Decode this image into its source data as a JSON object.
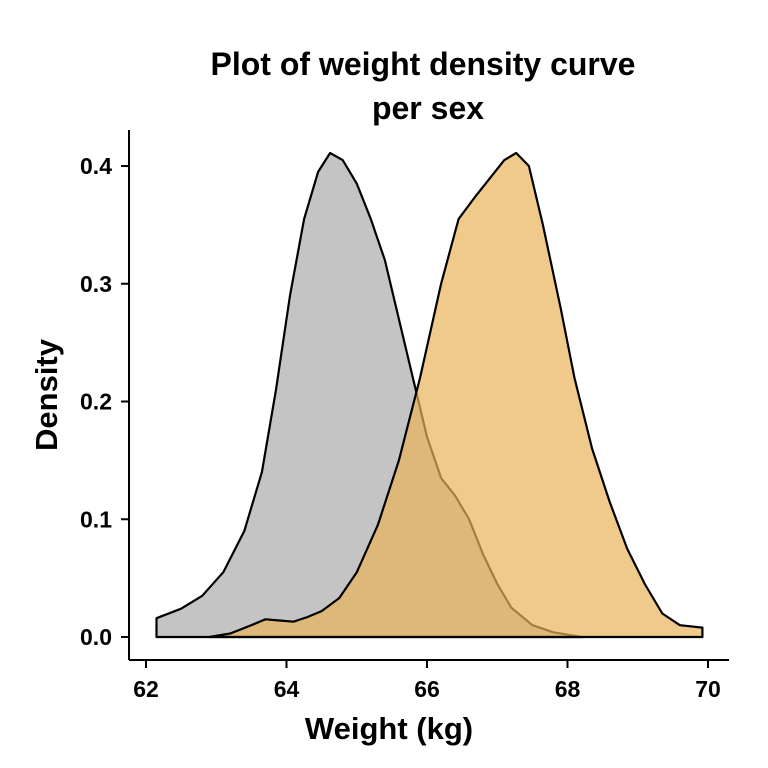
{
  "chart_data": {
    "type": "area",
    "title": [
      "Plot of weight density curve",
      "per sex"
    ],
    "xlabel": "Weight (kg)",
    "ylabel": "Density",
    "xlim": [
      62,
      70
    ],
    "ylim": [
      0,
      0.4
    ],
    "x_ticks": [
      "62",
      "64",
      "66",
      "68",
      "70"
    ],
    "y_ticks": [
      "0.0",
      "0.1",
      "0.2",
      "0.3",
      "0.4"
    ],
    "legend": "none",
    "grid": false,
    "series": [
      {
        "color": "#bebebe",
        "opacity": 0.9,
        "points": [
          [
            62.15,
            0.016
          ],
          [
            62.5,
            0.024
          ],
          [
            62.8,
            0.035
          ],
          [
            63.1,
            0.055
          ],
          [
            63.4,
            0.09
          ],
          [
            63.65,
            0.14
          ],
          [
            63.85,
            0.21
          ],
          [
            64.05,
            0.29
          ],
          [
            64.25,
            0.355
          ],
          [
            64.45,
            0.395
          ],
          [
            64.62,
            0.411
          ],
          [
            64.8,
            0.405
          ],
          [
            65.0,
            0.385
          ],
          [
            65.2,
            0.355
          ],
          [
            65.4,
            0.32
          ],
          [
            65.6,
            0.27
          ],
          [
            65.8,
            0.22
          ],
          [
            66.0,
            0.17
          ],
          [
            66.2,
            0.135
          ],
          [
            66.4,
            0.12
          ],
          [
            66.6,
            0.1
          ],
          [
            66.8,
            0.07
          ],
          [
            67.0,
            0.045
          ],
          [
            67.2,
            0.025
          ],
          [
            67.5,
            0.01
          ],
          [
            67.8,
            0.004
          ],
          [
            68.2,
            0.0
          ]
        ]
      },
      {
        "color": "#e9b45a",
        "opacity": 0.7,
        "points": [
          [
            62.9,
            0.0
          ],
          [
            63.2,
            0.003
          ],
          [
            63.5,
            0.01
          ],
          [
            63.7,
            0.015
          ],
          [
            63.9,
            0.014
          ],
          [
            64.1,
            0.013
          ],
          [
            64.3,
            0.017
          ],
          [
            64.5,
            0.022
          ],
          [
            64.75,
            0.033
          ],
          [
            65.0,
            0.055
          ],
          [
            65.3,
            0.095
          ],
          [
            65.6,
            0.15
          ],
          [
            65.9,
            0.22
          ],
          [
            66.2,
            0.3
          ],
          [
            66.45,
            0.355
          ],
          [
            66.7,
            0.375
          ],
          [
            66.9,
            0.39
          ],
          [
            67.1,
            0.405
          ],
          [
            67.27,
            0.411
          ],
          [
            67.45,
            0.4
          ],
          [
            67.65,
            0.35
          ],
          [
            67.9,
            0.28
          ],
          [
            68.1,
            0.22
          ],
          [
            68.35,
            0.16
          ],
          [
            68.6,
            0.115
          ],
          [
            68.85,
            0.075
          ],
          [
            69.1,
            0.045
          ],
          [
            69.35,
            0.02
          ],
          [
            69.6,
            0.01
          ],
          [
            69.92,
            0.008
          ]
        ]
      }
    ]
  }
}
